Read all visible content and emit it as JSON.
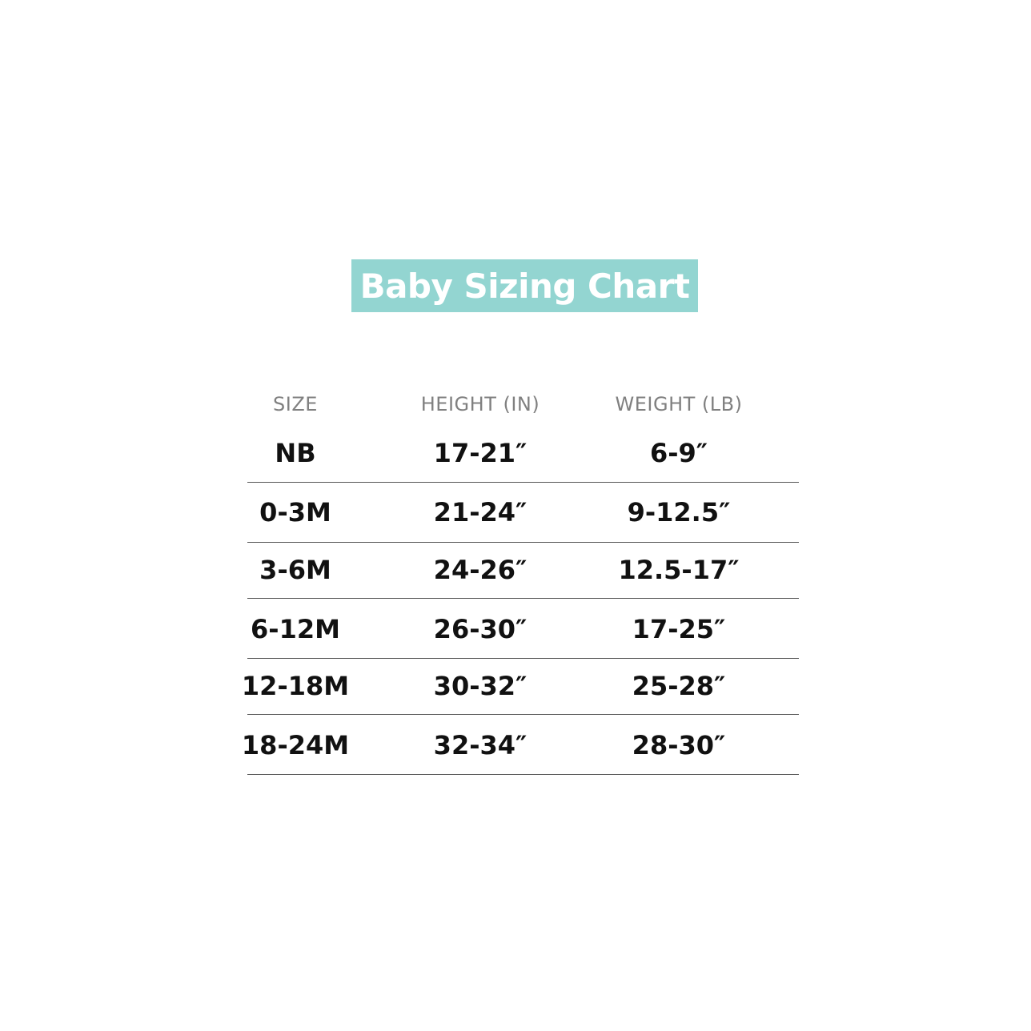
{
  "title": "Baby Sizing Chart",
  "colors": {
    "title_background": "#93d5d1",
    "header_text": "#808080",
    "value_text": "#111111"
  },
  "table": {
    "headers": [
      "SIZE",
      "HEIGHT (IN)",
      "WEIGHT (LB)"
    ],
    "rows": [
      [
        "NB",
        "17-21″",
        "6-9″"
      ],
      [
        "0-3M",
        "21-24″",
        "9-12.5″"
      ],
      [
        "3-6M",
        "24-26″",
        "12.5-17″"
      ],
      [
        "6-12M",
        "26-30″",
        "17-25″"
      ],
      [
        "12-18M",
        "30-32″",
        "25-28″"
      ],
      [
        "18-24M",
        "32-34″",
        "28-30″"
      ]
    ]
  }
}
